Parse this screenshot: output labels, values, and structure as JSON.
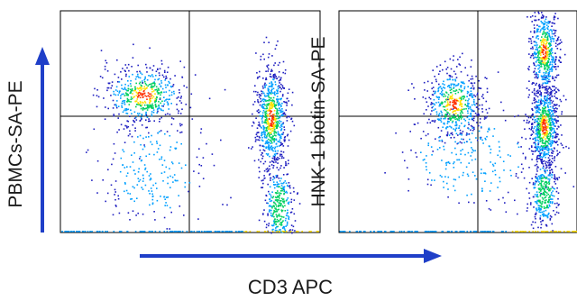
{
  "chart_data": [
    {
      "type": "scatter",
      "xlabel": "CD3 APC",
      "ylabel": "PBMCs-SA-PE",
      "quadrant_gates": true,
      "populations": [
        {
          "x": 0.32,
          "y": 0.62,
          "spread": [
            0.08,
            0.07
          ],
          "density": "high"
        },
        {
          "x": 0.81,
          "y": 0.52,
          "spread": [
            0.03,
            0.12
          ],
          "density": "very-high"
        },
        {
          "x": 0.84,
          "y": 0.12,
          "spread": [
            0.03,
            0.1
          ],
          "density": "medium"
        },
        {
          "x": 0.36,
          "y": 0.28,
          "spread": [
            0.1,
            0.12
          ],
          "density": "low"
        }
      ],
      "colormap": [
        "#1f1fc0",
        "#00a0ff",
        "#00d060",
        "#ffe000",
        "#ff3000"
      ]
    },
    {
      "type": "scatter",
      "xlabel": "CD3 APC",
      "ylabel": "HNK-1 biotin-SA-PE",
      "quadrant_gates": true,
      "populations": [
        {
          "x": 0.48,
          "y": 0.58,
          "spread": [
            0.06,
            0.08
          ],
          "density": "high"
        },
        {
          "x": 0.86,
          "y": 0.48,
          "spread": [
            0.03,
            0.1
          ],
          "density": "very-high"
        },
        {
          "x": 0.86,
          "y": 0.82,
          "spread": [
            0.03,
            0.1
          ],
          "density": "high"
        },
        {
          "x": 0.86,
          "y": 0.18,
          "spread": [
            0.03,
            0.08
          ],
          "density": "medium"
        },
        {
          "x": 0.55,
          "y": 0.35,
          "spread": [
            0.14,
            0.12
          ],
          "density": "low"
        }
      ],
      "colormap": [
        "#1f1fc0",
        "#00a0ff",
        "#00d060",
        "#ffe000",
        "#ff3000"
      ]
    }
  ],
  "axes": {
    "x_arrow_color": "#1f3fc8",
    "y_arrow_color": "#1f3fc8"
  }
}
